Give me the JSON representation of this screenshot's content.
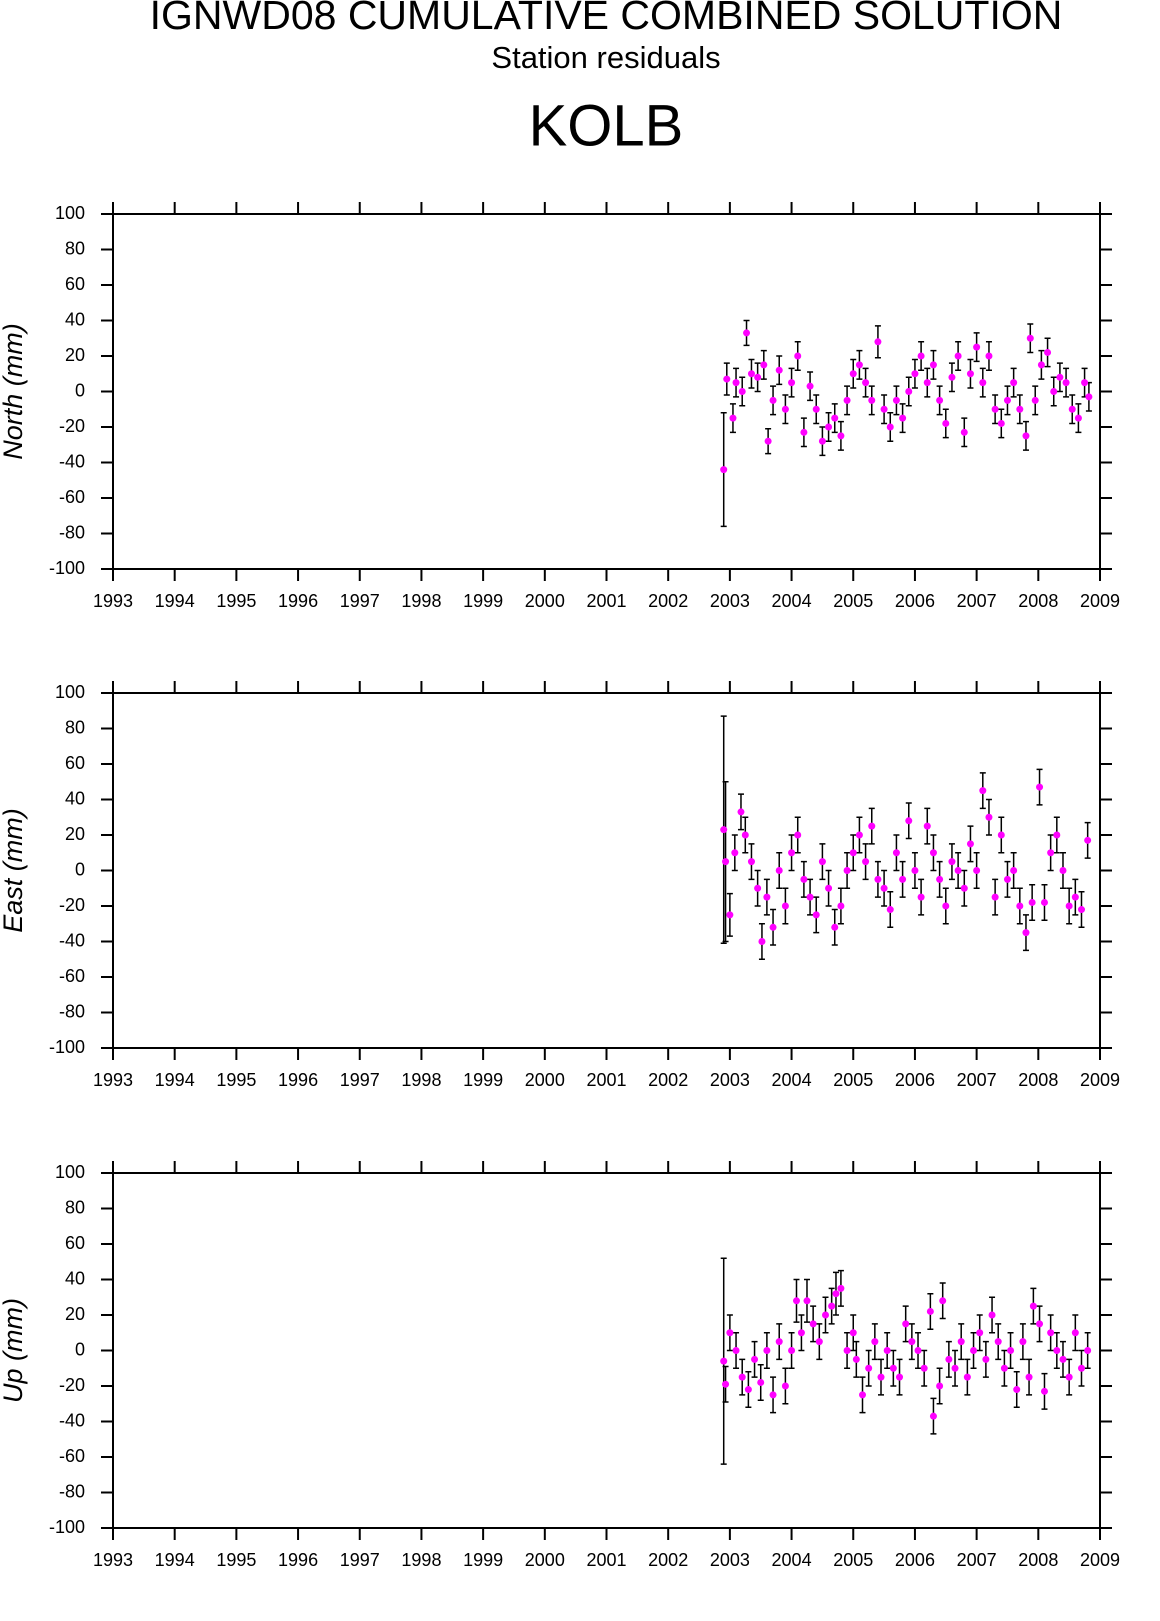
{
  "header": {
    "title": "IGNWD08 CUMULATIVE COMBINED SOLUTION",
    "subtitle": "Station residuals",
    "station": "KOLB"
  },
  "chart_data": [
    {
      "type": "scatter",
      "y_label": "North (mm)",
      "color": "#ff00ff",
      "x": [
        2002.9,
        2002.95,
        2003.05,
        2003.1,
        2003.2,
        2003.27,
        2003.35,
        2003.45,
        2003.55,
        2003.62,
        2003.7,
        2003.8,
        2003.9,
        2004.0,
        2004.1,
        2004.2,
        2004.3,
        2004.4,
        2004.5,
        2004.6,
        2004.7,
        2004.8,
        2004.9,
        2005.0,
        2005.1,
        2005.2,
        2005.3,
        2005.4,
        2005.5,
        2005.6,
        2005.7,
        2005.8,
        2005.9,
        2006.0,
        2006.1,
        2006.2,
        2006.3,
        2006.4,
        2006.5,
        2006.6,
        2006.7,
        2006.8,
        2006.9,
        2007.0,
        2007.1,
        2007.2,
        2007.3,
        2007.4,
        2007.5,
        2007.6,
        2007.7,
        2007.8,
        2007.87,
        2007.95,
        2008.05,
        2008.15,
        2008.25,
        2008.35,
        2008.45,
        2008.55,
        2008.65,
        2008.75,
        2008.82
      ],
      "values": [
        -44,
        7,
        -15,
        5,
        0,
        33,
        10,
        8,
        15,
        -28,
        -5,
        12,
        -10,
        5,
        20,
        -23,
        3,
        -10,
        -28,
        -20,
        -15,
        -25,
        -5,
        10,
        15,
        5,
        -5,
        28,
        -10,
        -20,
        -5,
        -15,
        0,
        10,
        20,
        5,
        15,
        -5,
        -18,
        8,
        20,
        -23,
        10,
        25,
        5,
        20,
        -10,
        -18,
        -5,
        5,
        -10,
        -25,
        30,
        -5,
        15,
        22,
        0,
        8,
        5,
        -10,
        -15,
        5,
        -3
      ],
      "errors": [
        32,
        9,
        8,
        8,
        8,
        7,
        8,
        8,
        8,
        7,
        8,
        8,
        8,
        8,
        8,
        8,
        8,
        8,
        8,
        8,
        8,
        8,
        8,
        8,
        8,
        8,
        8,
        9,
        8,
        8,
        8,
        8,
        8,
        8,
        8,
        8,
        8,
        8,
        8,
        8,
        8,
        8,
        8,
        8,
        8,
        8,
        8,
        8,
        8,
        8,
        8,
        8,
        8,
        8,
        8,
        8,
        8,
        8,
        8,
        8,
        8,
        8,
        8
      ],
      "xlim": [
        1993,
        2009
      ],
      "xticks": [
        1993,
        1994,
        1995,
        1996,
        1997,
        1998,
        1999,
        2000,
        2001,
        2002,
        2003,
        2004,
        2005,
        2006,
        2007,
        2008,
        2009
      ],
      "ylim": [
        -100,
        100
      ],
      "yticks": [
        -100,
        -80,
        -60,
        -40,
        -20,
        0,
        20,
        40,
        60,
        80,
        100
      ]
    },
    {
      "type": "scatter",
      "y_label": "East (mm)",
      "color": "#ff00ff",
      "x": [
        2002.9,
        2002.93,
        2003.0,
        2003.08,
        2003.18,
        2003.25,
        2003.35,
        2003.45,
        2003.52,
        2003.6,
        2003.7,
        2003.8,
        2003.9,
        2004.0,
        2004.1,
        2004.2,
        2004.3,
        2004.4,
        2004.5,
        2004.6,
        2004.7,
        2004.8,
        2004.9,
        2005.0,
        2005.1,
        2005.2,
        2005.3,
        2005.4,
        2005.5,
        2005.6,
        2005.7,
        2005.8,
        2005.9,
        2006.0,
        2006.1,
        2006.2,
        2006.3,
        2006.4,
        2006.5,
        2006.6,
        2006.7,
        2006.8,
        2006.9,
        2007.0,
        2007.1,
        2007.2,
        2007.3,
        2007.4,
        2007.5,
        2007.6,
        2007.7,
        2007.8,
        2007.9,
        2008.02,
        2008.1,
        2008.2,
        2008.3,
        2008.4,
        2008.5,
        2008.6,
        2008.7,
        2008.8
      ],
      "values": [
        23,
        5,
        -25,
        10,
        33,
        20,
        5,
        -10,
        -40,
        -15,
        -32,
        0,
        -20,
        10,
        20,
        -5,
        -15,
        -25,
        5,
        -10,
        -32,
        -20,
        0,
        10,
        20,
        5,
        25,
        -5,
        -10,
        -22,
        10,
        -5,
        28,
        0,
        -15,
        25,
        10,
        -5,
        -20,
        5,
        0,
        -10,
        15,
        0,
        45,
        30,
        -15,
        20,
        -5,
        0,
        -20,
        -35,
        -18,
        47,
        -18,
        10,
        20,
        0,
        -20,
        -15,
        -22,
        17
      ],
      "errors": [
        64,
        45,
        12,
        10,
        10,
        10,
        10,
        10,
        10,
        10,
        10,
        10,
        10,
        10,
        10,
        10,
        10,
        10,
        10,
        10,
        10,
        10,
        10,
        10,
        10,
        10,
        10,
        10,
        10,
        10,
        10,
        10,
        10,
        10,
        10,
        10,
        10,
        10,
        10,
        10,
        10,
        10,
        10,
        10,
        10,
        10,
        10,
        10,
        10,
        10,
        10,
        10,
        10,
        10,
        10,
        10,
        10,
        10,
        10,
        10,
        10,
        10
      ],
      "xlim": [
        1993,
        2009
      ],
      "xticks": [
        1993,
        1994,
        1995,
        1996,
        1997,
        1998,
        1999,
        2000,
        2001,
        2002,
        2003,
        2004,
        2005,
        2006,
        2007,
        2008,
        2009
      ],
      "ylim": [
        -100,
        100
      ],
      "yticks": [
        -100,
        -80,
        -60,
        -40,
        -20,
        0,
        20,
        40,
        60,
        80,
        100
      ]
    },
    {
      "type": "scatter",
      "y_label": "Up (mm)",
      "color": "#ff00ff",
      "x": [
        2002.9,
        2002.93,
        2003.0,
        2003.1,
        2003.2,
        2003.3,
        2003.4,
        2003.5,
        2003.6,
        2003.7,
        2003.8,
        2003.9,
        2004.0,
        2004.08,
        2004.16,
        2004.25,
        2004.35,
        2004.45,
        2004.55,
        2004.65,
        2004.72,
        2004.8,
        2004.9,
        2005.0,
        2005.05,
        2005.15,
        2005.25,
        2005.35,
        2005.45,
        2005.55,
        2005.65,
        2005.75,
        2005.85,
        2005.95,
        2006.05,
        2006.15,
        2006.25,
        2006.3,
        2006.4,
        2006.45,
        2006.55,
        2006.65,
        2006.75,
        2006.85,
        2006.95,
        2007.05,
        2007.15,
        2007.25,
        2007.35,
        2007.45,
        2007.55,
        2007.65,
        2007.75,
        2007.85,
        2007.92,
        2008.02,
        2008.1,
        2008.2,
        2008.3,
        2008.4,
        2008.5,
        2008.6,
        2008.7,
        2008.8
      ],
      "values": [
        -6,
        -19,
        10,
        0,
        -15,
        -22,
        -5,
        -18,
        0,
        -25,
        5,
        -20,
        0,
        28,
        10,
        28,
        15,
        5,
        20,
        25,
        32,
        35,
        0,
        10,
        -5,
        -25,
        -10,
        5,
        -15,
        0,
        -10,
        -15,
        15,
        5,
        0,
        -10,
        22,
        -37,
        -20,
        28,
        -5,
        -10,
        5,
        -15,
        0,
        10,
        -5,
        20,
        5,
        -10,
        0,
        -22,
        5,
        -15,
        25,
        15,
        -23,
        10,
        0,
        -5,
        -15,
        10,
        -10,
        0
      ],
      "errors": [
        58,
        10,
        10,
        10,
        10,
        10,
        10,
        10,
        10,
        10,
        10,
        10,
        10,
        12,
        10,
        12,
        10,
        10,
        10,
        10,
        12,
        10,
        10,
        10,
        10,
        10,
        10,
        10,
        10,
        10,
        10,
        10,
        10,
        10,
        10,
        10,
        10,
        10,
        10,
        10,
        10,
        10,
        10,
        10,
        10,
        10,
        10,
        10,
        10,
        10,
        10,
        10,
        10,
        10,
        10,
        10,
        10,
        10,
        10,
        10,
        10,
        10,
        10,
        10
      ],
      "xlim": [
        1993,
        2009
      ],
      "xticks": [
        1993,
        1994,
        1995,
        1996,
        1997,
        1998,
        1999,
        2000,
        2001,
        2002,
        2003,
        2004,
        2005,
        2006,
        2007,
        2008,
        2009
      ],
      "ylim": [
        -100,
        100
      ],
      "yticks": [
        -100,
        -80,
        -60,
        -40,
        -20,
        0,
        20,
        40,
        60,
        80,
        100
      ]
    }
  ]
}
